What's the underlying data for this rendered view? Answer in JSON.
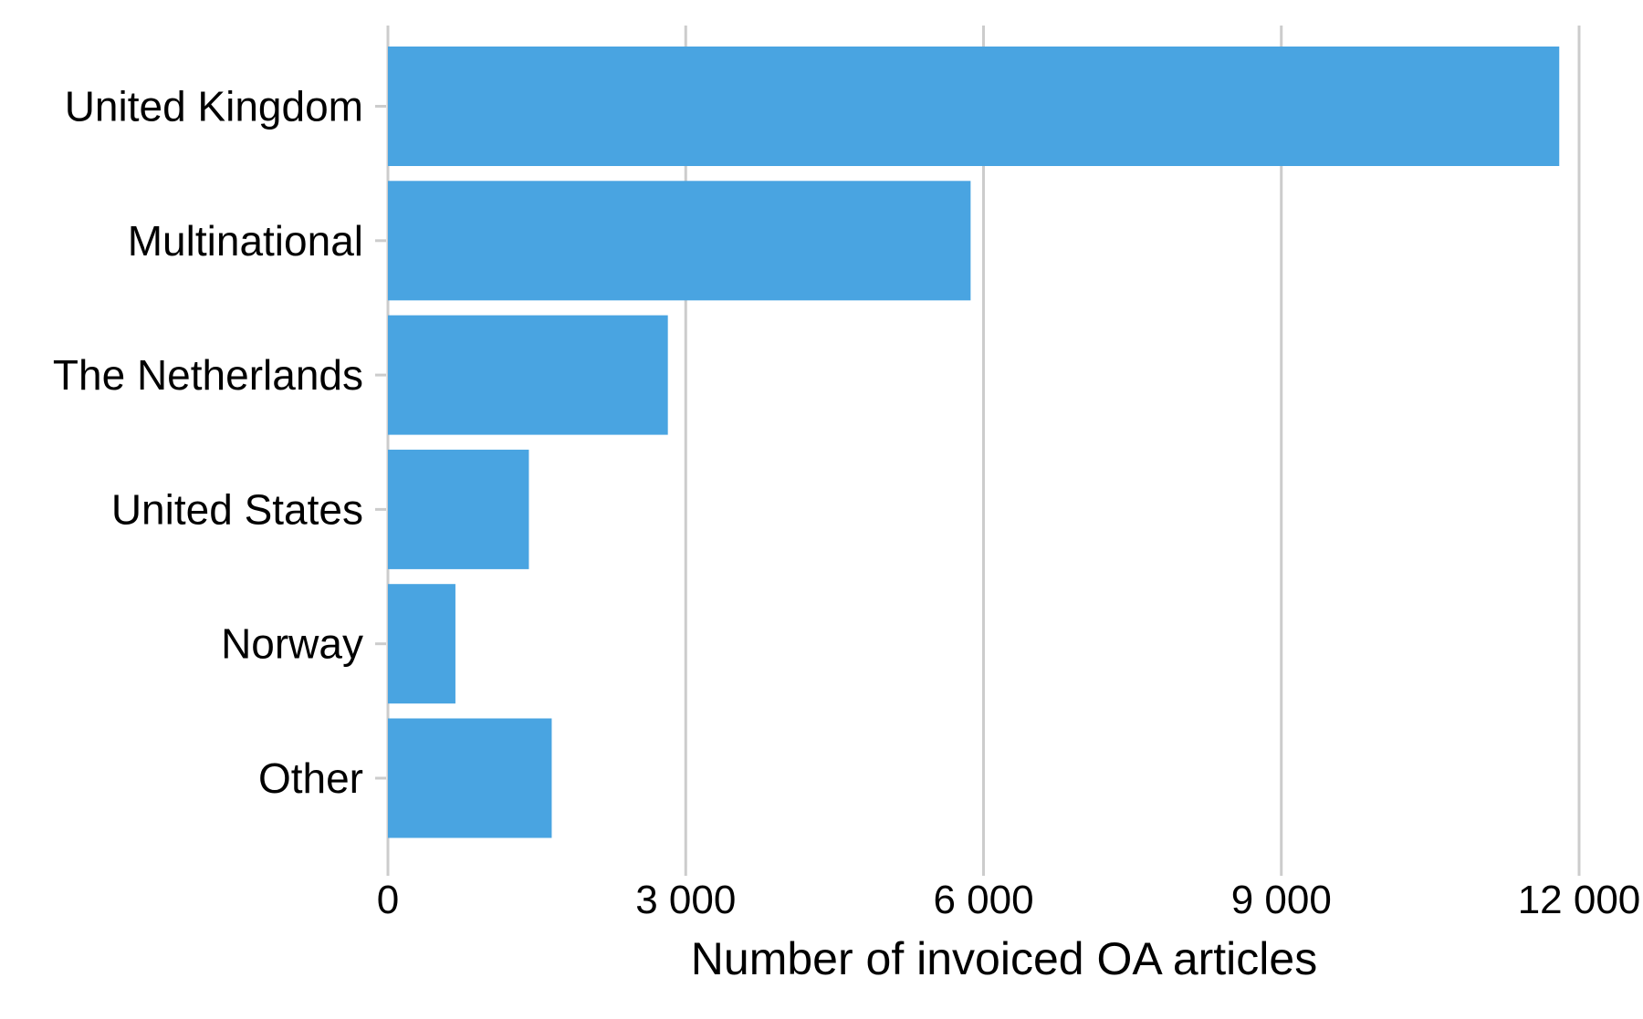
{
  "chart_data": {
    "type": "bar",
    "orientation": "horizontal",
    "title": "",
    "xlabel": "Number of invoiced OA articles",
    "ylabel": "",
    "categories": [
      "United Kingdom",
      "Multinational",
      "The Netherlands",
      "United States",
      "Norway",
      "Other"
    ],
    "values": [
      11800,
      5870,
      2820,
      1420,
      680,
      1650
    ],
    "xlim": [
      0,
      12000
    ],
    "ticks": [
      0,
      3000,
      6000,
      9000,
      12000
    ],
    "tick_labels": [
      "0",
      "3 000",
      "6 000",
      "9 000",
      "12 000"
    ],
    "grid": "vertical",
    "legend": "none",
    "bar_color": "#49a4e1",
    "grid_color": "#cccccc"
  }
}
